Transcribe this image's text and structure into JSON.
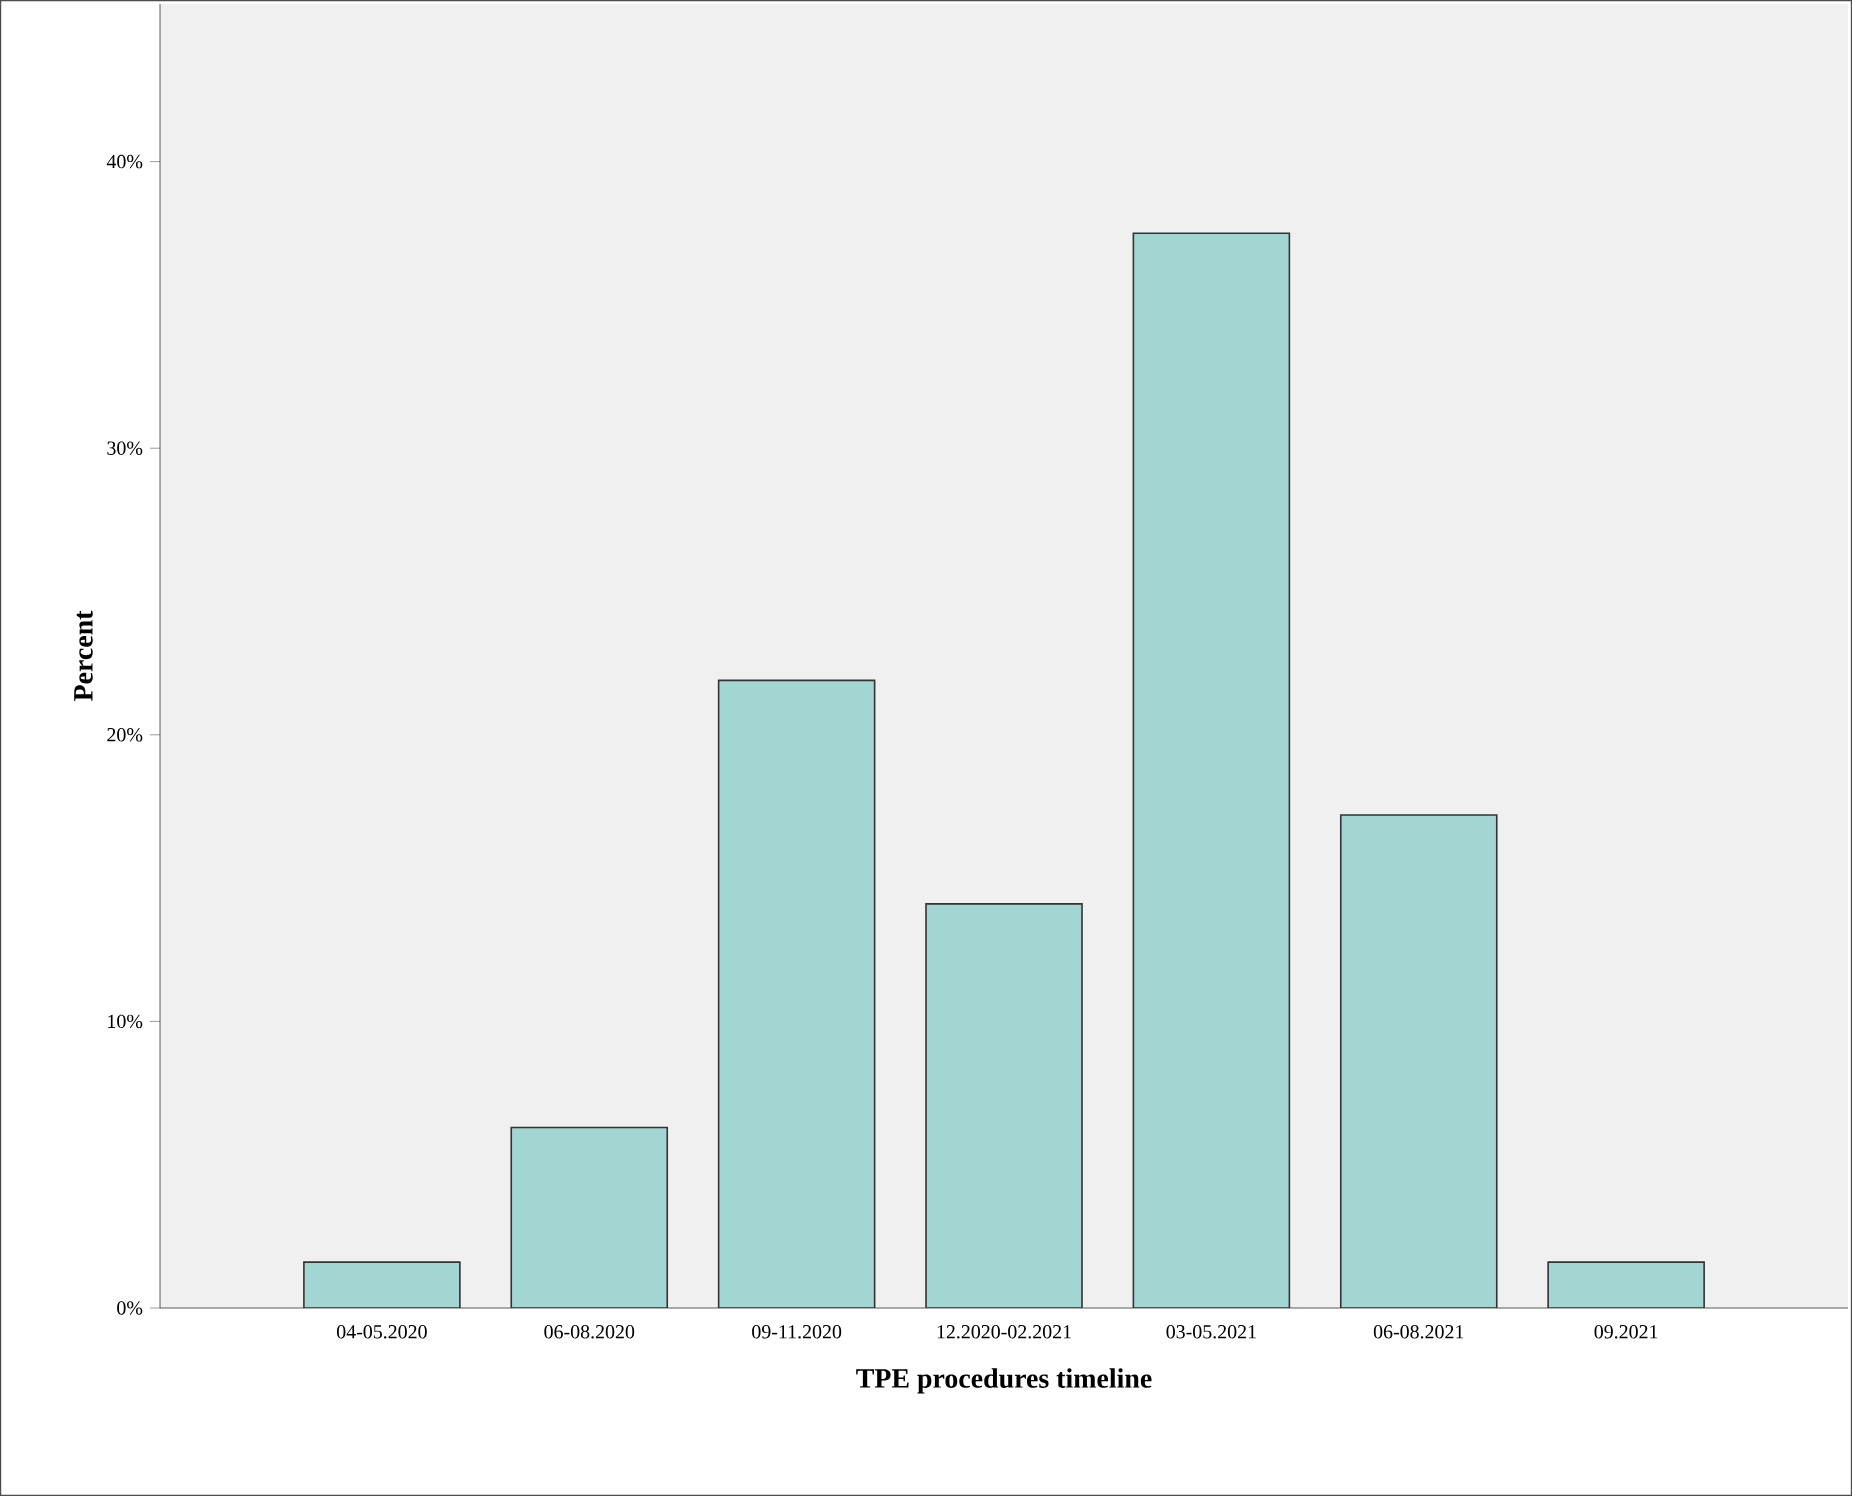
{
  "chart_data": {
    "type": "bar",
    "xlabel": "TPE procedures timeline",
    "ylabel": "Percent",
    "categories": [
      "04-05.2020",
      "06-08.2020",
      "09-11.2020",
      "12.2020-02.2021",
      "03-05.2021",
      "06-08.2021",
      "09.2021"
    ],
    "values": [
      1.6,
      6.3,
      21.9,
      14.1,
      37.5,
      17.2,
      1.6
    ],
    "color": "#a3d6d3",
    "ylim": [
      0,
      45.5
    ],
    "yticks": [
      {
        "value": 0,
        "label": "0%"
      },
      {
        "value": 10,
        "label": "10%"
      },
      {
        "value": 20,
        "label": "20%"
      },
      {
        "value": 30,
        "label": "30%"
      },
      {
        "value": 40,
        "label": "40%"
      }
    ]
  }
}
